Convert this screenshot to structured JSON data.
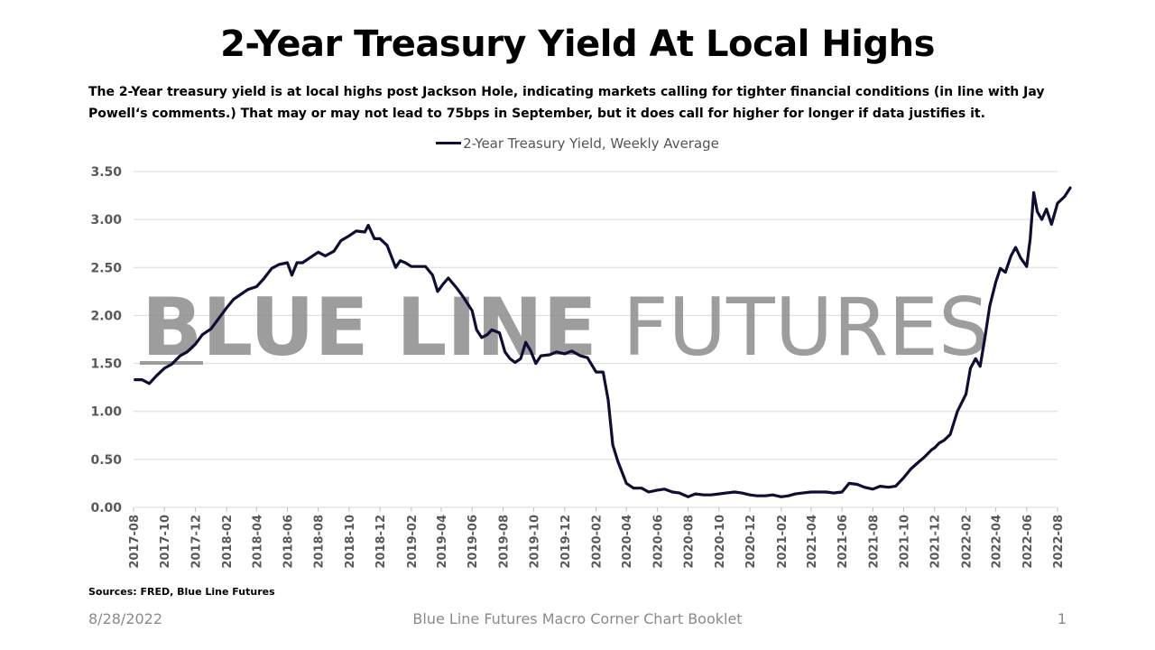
{
  "title": "2-Year Treasury Yield At Local Highs",
  "subtitle": "The 2-Year treasury yield is at local highs post Jackson Hole, indicating markets calling for tighter financial conditions (in line with Jay Powell‘s comments.) That may or may not lead to 75bps in September, but it does call for higher for longer if data justifies it.",
  "watermark": {
    "bold": "BLUE LINE",
    "light": "FUTURES"
  },
  "sources": "Sources: FRED, Blue Line Futures",
  "footer": {
    "date": "8/28/2022",
    "center": "Blue Line Futures Macro Corner Chart Booklet",
    "page": "1"
  },
  "colors": {
    "line": "#0e0e33",
    "grid": "#d9d9d9",
    "axis_text": "#595959",
    "watermark": "#8c8c8c"
  },
  "chart_data": {
    "type": "line",
    "legend_position": "top",
    "grid": true,
    "ylim": [
      0,
      3.5
    ],
    "yticks": [
      "0.00",
      "0.50",
      "1.00",
      "1.50",
      "2.00",
      "2.50",
      "3.00",
      "3.50"
    ],
    "xlim": [
      "2017-08",
      "2022-08"
    ],
    "xticks": [
      "2017-08",
      "2017-10",
      "2017-12",
      "2018-02",
      "2018-04",
      "2018-06",
      "2018-08",
      "2018-10",
      "2018-12",
      "2019-02",
      "2019-04",
      "2019-06",
      "2019-08",
      "2019-10",
      "2019-12",
      "2020-02",
      "2020-04",
      "2020-06",
      "2020-08",
      "2020-10",
      "2020-12",
      "2021-02",
      "2021-04",
      "2021-06",
      "2021-08",
      "2021-10",
      "2021-12",
      "2022-02",
      "2022-04",
      "2022-06",
      "2022-08"
    ],
    "series": [
      {
        "name": "2-Year Treasury Yield, Weekly Average",
        "points": [
          [
            "2017-08-04",
            1.33
          ],
          [
            "2017-08-18",
            1.33
          ],
          [
            "2017-09-01",
            1.29
          ],
          [
            "2017-09-15",
            1.37
          ],
          [
            "2017-10-01",
            1.45
          ],
          [
            "2017-10-15",
            1.49
          ],
          [
            "2017-11-01",
            1.58
          ],
          [
            "2017-11-15",
            1.62
          ],
          [
            "2017-12-01",
            1.7
          ],
          [
            "2017-12-15",
            1.8
          ],
          [
            "2018-01-01",
            1.86
          ],
          [
            "2018-01-15",
            1.96
          ],
          [
            "2018-02-01",
            2.08
          ],
          [
            "2018-02-15",
            2.17
          ],
          [
            "2018-03-01",
            2.22
          ],
          [
            "2018-03-15",
            2.27
          ],
          [
            "2018-04-01",
            2.3
          ],
          [
            "2018-04-15",
            2.38
          ],
          [
            "2018-05-01",
            2.49
          ],
          [
            "2018-05-15",
            2.53
          ],
          [
            "2018-06-01",
            2.55
          ],
          [
            "2018-06-10",
            2.42
          ],
          [
            "2018-06-20",
            2.55
          ],
          [
            "2018-07-01",
            2.55
          ],
          [
            "2018-07-15",
            2.6
          ],
          [
            "2018-08-01",
            2.66
          ],
          [
            "2018-08-15",
            2.62
          ],
          [
            "2018-09-01",
            2.67
          ],
          [
            "2018-09-15",
            2.78
          ],
          [
            "2018-10-01",
            2.83
          ],
          [
            "2018-10-15",
            2.88
          ],
          [
            "2018-11-01",
            2.87
          ],
          [
            "2018-11-08",
            2.94
          ],
          [
            "2018-11-20",
            2.8
          ],
          [
            "2018-12-01",
            2.8
          ],
          [
            "2018-12-15",
            2.73
          ],
          [
            "2019-01-01",
            2.5
          ],
          [
            "2019-01-10",
            2.57
          ],
          [
            "2019-01-20",
            2.55
          ],
          [
            "2019-02-01",
            2.51
          ],
          [
            "2019-02-15",
            2.51
          ],
          [
            "2019-03-01",
            2.51
          ],
          [
            "2019-03-15",
            2.42
          ],
          [
            "2019-03-25",
            2.25
          ],
          [
            "2019-04-05",
            2.33
          ],
          [
            "2019-04-15",
            2.39
          ],
          [
            "2019-05-01",
            2.29
          ],
          [
            "2019-05-15",
            2.19
          ],
          [
            "2019-06-01",
            2.05
          ],
          [
            "2019-06-10",
            1.85
          ],
          [
            "2019-06-20",
            1.77
          ],
          [
            "2019-07-01",
            1.8
          ],
          [
            "2019-07-10",
            1.85
          ],
          [
            "2019-07-25",
            1.82
          ],
          [
            "2019-08-05",
            1.62
          ],
          [
            "2019-08-15",
            1.55
          ],
          [
            "2019-08-25",
            1.51
          ],
          [
            "2019-09-05",
            1.55
          ],
          [
            "2019-09-15",
            1.72
          ],
          [
            "2019-09-25",
            1.63
          ],
          [
            "2019-10-05",
            1.5
          ],
          [
            "2019-10-15",
            1.58
          ],
          [
            "2019-11-01",
            1.59
          ],
          [
            "2019-11-15",
            1.62
          ],
          [
            "2019-12-01",
            1.6
          ],
          [
            "2019-12-15",
            1.63
          ],
          [
            "2020-01-01",
            1.58
          ],
          [
            "2020-01-15",
            1.56
          ],
          [
            "2020-02-01",
            1.41
          ],
          [
            "2020-02-15",
            1.41
          ],
          [
            "2020-02-25",
            1.12
          ],
          [
            "2020-03-05",
            0.65
          ],
          [
            "2020-03-15",
            0.48
          ],
          [
            "2020-04-01",
            0.25
          ],
          [
            "2020-04-15",
            0.2
          ],
          [
            "2020-05-01",
            0.2
          ],
          [
            "2020-05-15",
            0.16
          ],
          [
            "2020-06-01",
            0.18
          ],
          [
            "2020-06-15",
            0.19
          ],
          [
            "2020-07-01",
            0.16
          ],
          [
            "2020-07-15",
            0.15
          ],
          [
            "2020-08-01",
            0.11
          ],
          [
            "2020-08-15",
            0.14
          ],
          [
            "2020-09-01",
            0.13
          ],
          [
            "2020-09-15",
            0.13
          ],
          [
            "2020-10-01",
            0.14
          ],
          [
            "2020-10-15",
            0.15
          ],
          [
            "2020-11-01",
            0.16
          ],
          [
            "2020-11-15",
            0.15
          ],
          [
            "2020-12-01",
            0.13
          ],
          [
            "2020-12-15",
            0.12
          ],
          [
            "2021-01-01",
            0.12
          ],
          [
            "2021-01-15",
            0.13
          ],
          [
            "2021-02-01",
            0.11
          ],
          [
            "2021-02-15",
            0.12
          ],
          [
            "2021-03-01",
            0.14
          ],
          [
            "2021-03-15",
            0.15
          ],
          [
            "2021-04-01",
            0.16
          ],
          [
            "2021-04-15",
            0.16
          ],
          [
            "2021-05-01",
            0.16
          ],
          [
            "2021-05-15",
            0.15
          ],
          [
            "2021-06-01",
            0.16
          ],
          [
            "2021-06-15",
            0.25
          ],
          [
            "2021-07-01",
            0.24
          ],
          [
            "2021-07-15",
            0.21
          ],
          [
            "2021-08-01",
            0.19
          ],
          [
            "2021-08-15",
            0.22
          ],
          [
            "2021-09-01",
            0.21
          ],
          [
            "2021-09-15",
            0.22
          ],
          [
            "2021-10-01",
            0.31
          ],
          [
            "2021-10-15",
            0.4
          ],
          [
            "2021-11-01",
            0.48
          ],
          [
            "2021-11-10",
            0.52
          ],
          [
            "2021-11-25",
            0.6
          ],
          [
            "2021-12-01",
            0.62
          ],
          [
            "2021-12-10",
            0.67
          ],
          [
            "2021-12-20",
            0.7
          ],
          [
            "2022-01-01",
            0.76
          ],
          [
            "2022-01-15",
            1.0
          ],
          [
            "2022-02-01",
            1.18
          ],
          [
            "2022-02-10",
            1.45
          ],
          [
            "2022-02-20",
            1.55
          ],
          [
            "2022-03-01",
            1.47
          ],
          [
            "2022-03-10",
            1.75
          ],
          [
            "2022-03-20",
            2.1
          ],
          [
            "2022-04-01",
            2.35
          ],
          [
            "2022-04-10",
            2.49
          ],
          [
            "2022-04-20",
            2.45
          ],
          [
            "2022-05-01",
            2.62
          ],
          [
            "2022-05-10",
            2.71
          ],
          [
            "2022-05-20",
            2.6
          ],
          [
            "2022-06-01",
            2.51
          ],
          [
            "2022-06-08",
            2.8
          ],
          [
            "2022-06-15",
            3.28
          ],
          [
            "2022-06-22",
            3.08
          ],
          [
            "2022-07-01",
            3.0
          ],
          [
            "2022-07-10",
            3.11
          ],
          [
            "2022-07-20",
            2.95
          ],
          [
            "2022-08-01",
            3.17
          ],
          [
            "2022-08-15",
            3.24
          ],
          [
            "2022-08-26",
            3.33
          ]
        ]
      }
    ]
  }
}
